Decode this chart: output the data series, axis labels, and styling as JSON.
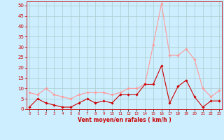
{
  "hours": [
    0,
    1,
    2,
    3,
    4,
    5,
    6,
    7,
    8,
    9,
    10,
    11,
    12,
    13,
    14,
    15,
    16,
    17,
    18,
    19,
    20,
    21,
    22,
    23
  ],
  "vent_moyen": [
    1,
    5,
    3,
    2,
    1,
    1,
    3,
    5,
    3,
    4,
    3,
    7,
    7,
    7,
    12,
    12,
    21,
    3,
    11,
    14,
    6,
    1,
    4,
    4
  ],
  "rafales": [
    8,
    7,
    10,
    7,
    6,
    5,
    7,
    8,
    8,
    8,
    7,
    8,
    10,
    10,
    12,
    31,
    51,
    26,
    26,
    29,
    24,
    10,
    6,
    9
  ],
  "xlabel": "Vent moyen/en rafales ( km/h )",
  "ylim": [
    0,
    52
  ],
  "yticks": [
    0,
    5,
    10,
    15,
    20,
    25,
    30,
    35,
    40,
    45,
    50
  ],
  "bg_color": "#cceeff",
  "grid_color": "#aacccc",
  "line_moyen_color": "#cc0000",
  "line_rafales_color": "#ff9999"
}
